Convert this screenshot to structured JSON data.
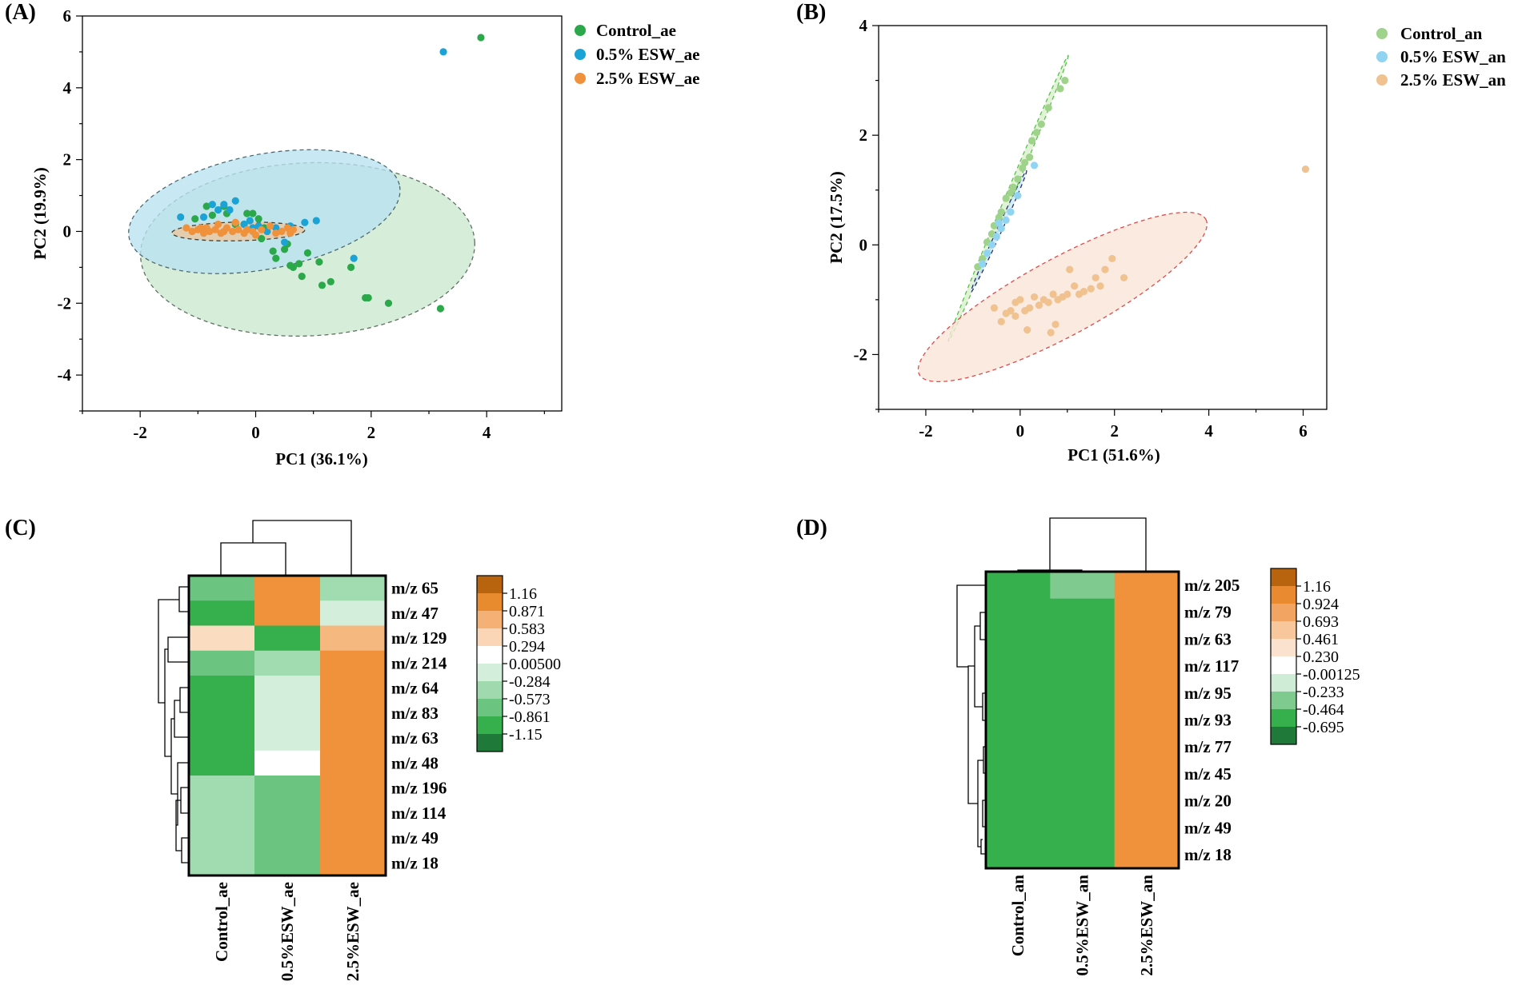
{
  "chart_data": [
    {
      "panel": "(A)",
      "type": "scatter",
      "xlabel": "PC1 (36.1%)",
      "ylabel": "PC2 (19.9%)",
      "xlim": [
        -3,
        5.3
      ],
      "ylim": [
        -5,
        6
      ],
      "xticks": [
        -2,
        0,
        2,
        4
      ],
      "yticks": [
        -4,
        -2,
        0,
        2,
        4,
        6
      ],
      "legend_position": "top-right outside",
      "series": [
        {
          "name": "Control_ae",
          "color": "#2aa84a",
          "fill": "#c8e8cc",
          "ellipse": {
            "cx": 0.9,
            "cy": -0.5,
            "rx": 2.9,
            "ry": 2.4,
            "angle": 4
          },
          "points": [
            [
              3.9,
              5.4
            ],
            [
              3.2,
              -2.15
            ],
            [
              2.3,
              -2.0
            ],
            [
              1.95,
              -1.85
            ],
            [
              1.9,
              -1.85
            ],
            [
              1.65,
              -1.0
            ],
            [
              1.3,
              -1.4
            ],
            [
              1.15,
              -1.5
            ],
            [
              1.1,
              -0.85
            ],
            [
              0.8,
              -1.25
            ],
            [
              0.75,
              -0.9
            ],
            [
              0.65,
              -1.0
            ],
            [
              0.6,
              -0.95
            ],
            [
              0.5,
              -0.5
            ],
            [
              0.35,
              -0.75
            ],
            [
              0.3,
              -0.55
            ],
            [
              0.15,
              0.1
            ],
            [
              0.1,
              -0.2
            ],
            [
              0.05,
              0.35
            ],
            [
              -0.05,
              0.5
            ],
            [
              -0.15,
              0.5
            ],
            [
              -0.2,
              0.2
            ],
            [
              -0.35,
              0.2
            ],
            [
              -0.5,
              0.5
            ],
            [
              -0.55,
              0.7
            ],
            [
              -0.75,
              0.45
            ],
            [
              -0.85,
              0.7
            ],
            [
              -1.05,
              0.35
            ],
            [
              0.9,
              -0.6
            ],
            [
              0.55,
              -0.35
            ]
          ]
        },
        {
          "name": "0.5% ESW_ae",
          "color": "#1aa3d4",
          "fill": "#b9e2ef",
          "ellipse": {
            "cx": 0.15,
            "cy": 0.55,
            "rx": 2.45,
            "ry": 1.5,
            "angle": 17
          },
          "points": [
            [
              3.25,
              5.0
            ],
            [
              1.05,
              0.3
            ],
            [
              1.7,
              -0.75
            ],
            [
              0.85,
              0.25
            ],
            [
              0.5,
              -0.3
            ],
            [
              0.35,
              0.1
            ],
            [
              0.2,
              0.0
            ],
            [
              0.05,
              0.15
            ],
            [
              -0.05,
              0.1
            ],
            [
              -0.2,
              0.2
            ],
            [
              -0.35,
              0.85
            ],
            [
              -0.45,
              0.6
            ],
            [
              -0.55,
              0.75
            ],
            [
              -0.65,
              0.6
            ],
            [
              -0.75,
              0.75
            ],
            [
              -0.9,
              0.4
            ],
            [
              -1.3,
              0.4
            ],
            [
              0.6,
              0.15
            ],
            [
              -0.1,
              0.3
            ]
          ]
        },
        {
          "name": "2.5% ESW_ae",
          "color": "#f0913b",
          "fill": "#e8c9a8",
          "ellipse": {
            "cx": -0.3,
            "cy": 0.0,
            "rx": 1.15,
            "ry": 0.26,
            "angle": 2
          },
          "points": [
            [
              -1.2,
              0.1
            ],
            [
              -1.1,
              0.0
            ],
            [
              -1.0,
              0.05
            ],
            [
              -0.95,
              0.1
            ],
            [
              -0.9,
              -0.05
            ],
            [
              -0.85,
              0.1
            ],
            [
              -0.8,
              0.0
            ],
            [
              -0.7,
              0.05
            ],
            [
              -0.6,
              -0.05
            ],
            [
              -0.55,
              0.0
            ],
            [
              -0.5,
              0.1
            ],
            [
              -0.4,
              0.0
            ],
            [
              -0.3,
              0.05
            ],
            [
              -0.2,
              -0.05
            ],
            [
              -0.15,
              0.05
            ],
            [
              -0.05,
              0.0
            ],
            [
              0.0,
              -0.1
            ],
            [
              0.1,
              0.05
            ],
            [
              0.25,
              0.15
            ],
            [
              0.35,
              -0.05
            ],
            [
              0.45,
              0.0
            ],
            [
              0.55,
              0.1
            ],
            [
              0.6,
              -0.05
            ],
            [
              0.65,
              0.05
            ],
            [
              -0.65,
              0.2
            ],
            [
              -0.35,
              0.25
            ]
          ]
        }
      ]
    },
    {
      "panel": "(B)",
      "type": "scatter",
      "xlabel": "PC1 (51.6%)",
      "ylabel": "PC2 (17.5%)",
      "xlim": [
        -3,
        6.5
      ],
      "ylim": [
        -3,
        4
      ],
      "xticks": [
        -2,
        0,
        2,
        4,
        6
      ],
      "yticks": [
        -2,
        0,
        2,
        4
      ],
      "legend_position": "top-right outside",
      "series": [
        {
          "name": "Control_an",
          "color": "#9fd28a",
          "fill": "#d9efcd",
          "ellipse": {
            "cx": -0.25,
            "cy": 0.85,
            "rx": 2.9,
            "ry": 0.07,
            "angle": 64
          },
          "points": [
            [
              0.95,
              3.0
            ],
            [
              0.85,
              2.85
            ],
            [
              0.6,
              2.5
            ],
            [
              0.45,
              2.2
            ],
            [
              0.35,
              2.05
            ],
            [
              0.2,
              1.6
            ],
            [
              0.1,
              1.5
            ],
            [
              0.05,
              1.4
            ],
            [
              -0.05,
              1.2
            ],
            [
              -0.15,
              1.05
            ],
            [
              -0.2,
              0.95
            ],
            [
              -0.3,
              0.85
            ],
            [
              -0.4,
              0.6
            ],
            [
              -0.45,
              0.5
            ],
            [
              -0.55,
              0.35
            ],
            [
              -0.6,
              0.2
            ],
            [
              -0.7,
              0.05
            ],
            [
              -0.8,
              -0.25
            ],
            [
              -0.9,
              -0.4
            ],
            [
              0.25,
              1.9
            ]
          ]
        },
        {
          "name": "0.5% ESW_an",
          "color": "#90d4f2",
          "fill": "#cbeaf7",
          "ellipse": {
            "cx": -0.45,
            "cy": 0.25,
            "rx": 1.25,
            "ry": 0.05,
            "angle": 62
          },
          "points": [
            [
              0.3,
              1.45
            ],
            [
              -0.05,
              0.9
            ],
            [
              -0.2,
              0.6
            ],
            [
              -0.3,
              0.45
            ],
            [
              -0.4,
              0.3
            ],
            [
              -0.5,
              0.15
            ],
            [
              -0.6,
              0.0
            ],
            [
              -0.7,
              -0.15
            ],
            [
              -0.8,
              -0.35
            ],
            [
              -0.45,
              0.4
            ]
          ]
        },
        {
          "name": "2.5% ESW_an",
          "color": "#f0c290",
          "fill": "#f9e5d8",
          "ellipse": {
            "cx": 0.9,
            "cy": -0.95,
            "rx": 3.35,
            "ry": 0.72,
            "angle": 25
          },
          "points": [
            [
              6.05,
              1.38
            ],
            [
              2.2,
              -0.6
            ],
            [
              1.95,
              -0.25
            ],
            [
              1.8,
              -0.45
            ],
            [
              1.7,
              -0.75
            ],
            [
              1.6,
              -0.6
            ],
            [
              1.5,
              -0.8
            ],
            [
              1.35,
              -0.85
            ],
            [
              1.25,
              -0.9
            ],
            [
              1.15,
              -0.75
            ],
            [
              1.0,
              -0.9
            ],
            [
              0.9,
              -0.95
            ],
            [
              0.8,
              -1.0
            ],
            [
              0.7,
              -0.9
            ],
            [
              0.6,
              -1.05
            ],
            [
              0.5,
              -1.0
            ],
            [
              0.4,
              -1.1
            ],
            [
              0.3,
              -0.95
            ],
            [
              0.2,
              -1.15
            ],
            [
              0.1,
              -1.2
            ],
            [
              0.0,
              -1.0
            ],
            [
              -0.1,
              -1.3
            ],
            [
              -0.2,
              -1.2
            ],
            [
              -0.3,
              -1.25
            ],
            [
              -0.4,
              -1.4
            ],
            [
              -0.55,
              -1.15
            ],
            [
              0.15,
              -1.55
            ],
            [
              0.75,
              -1.45
            ],
            [
              0.65,
              -1.6
            ],
            [
              -0.1,
              -1.05
            ],
            [
              1.05,
              -0.45
            ]
          ]
        }
      ]
    },
    {
      "panel": "(C)",
      "type": "heatmap",
      "columns": [
        "Control_ae",
        "0.5%ESW_ae",
        "2.5%ESW_ae"
      ],
      "rows": [
        "m/z 65",
        "m/z 47",
        "m/z 129",
        "m/z 214",
        "m/z 64",
        "m/z 83",
        "m/z 63",
        "m/z 48",
        "m/z 196",
        "m/z 114",
        "m/z 49",
        "m/z 18"
      ],
      "values": [
        [
          -0.5,
          1.0,
          -0.3
        ],
        [
          -0.75,
          1.0,
          -0.2
        ],
        [
          0.4,
          -0.75,
          0.7
        ],
        [
          -0.5,
          -0.3,
          1.0
        ],
        [
          -0.75,
          -0.2,
          1.0
        ],
        [
          -0.75,
          -0.2,
          1.0
        ],
        [
          -0.75,
          -0.2,
          1.0
        ],
        [
          -0.75,
          0.0,
          1.0
        ],
        [
          -0.3,
          -0.5,
          1.0
        ],
        [
          -0.3,
          -0.5,
          1.0
        ],
        [
          -0.3,
          -0.5,
          1.0
        ],
        [
          -0.3,
          -0.5,
          1.0
        ]
      ],
      "colorbar": {
        "labels": [
          "1.16",
          "0.871",
          "0.583",
          "0.294",
          "0.00500",
          "-0.284",
          "-0.573",
          "-0.861",
          "-1.15"
        ],
        "colors": [
          "#b8640f",
          "#e88a2e",
          "#f5b175",
          "#fad5b6",
          "#ffffff",
          "#d3eedb",
          "#9fd9ad",
          "#6cc481",
          "#35b04d",
          "#1f7a3a"
        ]
      },
      "cell_colors": {
        "1.0": "#f0913b",
        "0.7": "#f5b87e",
        "0.4": "#fadcc1",
        "0.0": "#ffffff",
        "-0.2": "#d3eedb",
        "-0.3": "#a1dbb0",
        "-0.5": "#6cc481",
        "-0.75": "#35b04d"
      },
      "row_dendrogram": "left",
      "col_dendrogram": "top"
    },
    {
      "panel": "(D)",
      "type": "heatmap",
      "columns": [
        "Control_an",
        "0.5%ESW_an",
        "2.5%ESW_an"
      ],
      "rows": [
        "m/z 205",
        "m/z 79",
        "m/z 63",
        "m/z 117",
        "m/z 95",
        "m/z 93",
        "m/z 77",
        "m/z 45",
        "m/z 20",
        "m/z 49",
        "m/z 18"
      ],
      "values": [
        [
          -0.6,
          -0.4,
          1.0
        ],
        [
          -0.6,
          -0.6,
          1.0
        ],
        [
          -0.6,
          -0.6,
          1.0
        ],
        [
          -0.6,
          -0.6,
          1.0
        ],
        [
          -0.6,
          -0.6,
          1.0
        ],
        [
          -0.6,
          -0.6,
          1.0
        ],
        [
          -0.6,
          -0.6,
          1.0
        ],
        [
          -0.6,
          -0.6,
          1.0
        ],
        [
          -0.6,
          -0.6,
          1.0
        ],
        [
          -0.6,
          -0.6,
          1.0
        ],
        [
          -0.6,
          -0.6,
          1.0
        ]
      ],
      "colorbar": {
        "labels": [
          "1.16",
          "0.924",
          "0.693",
          "0.461",
          "0.230",
          "-0.00125",
          "-0.233",
          "-0.464",
          "-0.695"
        ],
        "colors": [
          "#b8640f",
          "#ea8a30",
          "#f2a463",
          "#f8c79b",
          "#fbe2cf",
          "#ffffff",
          "#cfecd6",
          "#7fcb8f",
          "#35b04d",
          "#1f7a3a"
        ]
      },
      "cell_colors": {
        "1.0": "#f0913b",
        "-0.4": "#7fcb8f",
        "-0.6": "#35b04d"
      },
      "row_dendrogram": "left",
      "col_dendrogram": "top"
    }
  ]
}
